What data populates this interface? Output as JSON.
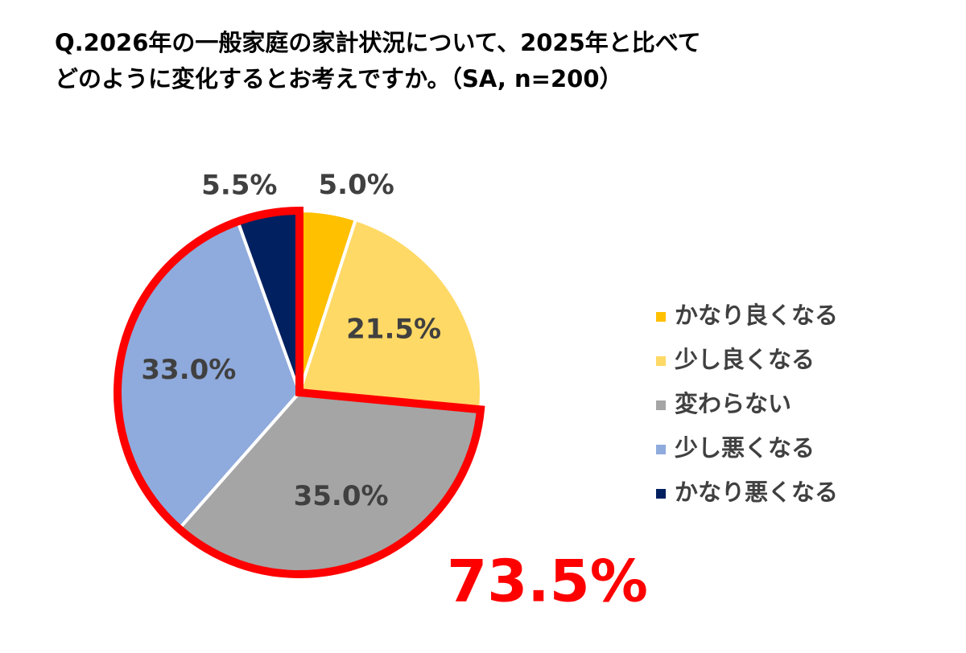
{
  "chart_data": {
    "type": "pie",
    "title": [
      "Q.2026年の一般家庭の家計状況について、2025年と比べて",
      "どのように変化するとお考えですか。（SA, n=200）"
    ],
    "categories": [
      "かなり良くなる",
      "少し良くなる",
      "変わらない",
      "少し悪くなる",
      "かなり悪くなる"
    ],
    "values": [
      5.0,
      21.5,
      35.0,
      33.0,
      5.5
    ],
    "value_labels": [
      "5.0%",
      "21.5%",
      "35.0%",
      "33.0%",
      "5.5%"
    ],
    "colors": [
      "#ffc000",
      "#ffd966",
      "#a5a5a5",
      "#8faadc",
      "#002060"
    ],
    "highlight": [
      2,
      3,
      4
    ],
    "annotation": "73.5%",
    "legend": "right"
  }
}
